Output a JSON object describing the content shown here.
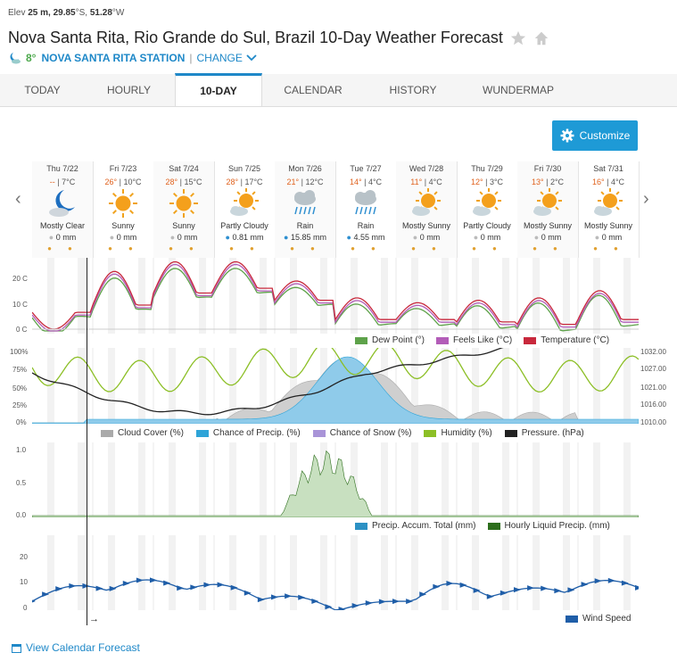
{
  "header": {
    "elev_label": "Elev",
    "elev_value": "25 m,",
    "lat": "29.85",
    "lat_dir": "°S,",
    "lon": "51.28",
    "lon_dir": "°W",
    "title": "Nova Santa Rita, Rio Grande do Sul, Brazil 10-Day Weather Forecast",
    "current_temp": "8°",
    "station": "NOVA SANTA RITA STATION",
    "change": "CHANGE"
  },
  "tabs": [
    "TODAY",
    "HOURLY",
    "10-DAY",
    "CALENDAR",
    "HISTORY",
    "WUNDERMAP"
  ],
  "active_tab": "10-DAY",
  "customize_label": "Customize",
  "days": [
    {
      "date": "Thu 7/22",
      "hi": "--",
      "lo": "7°C",
      "cond": "Mostly Clear",
      "precip": "0 mm",
      "icon": "moon-cloud-icon"
    },
    {
      "date": "Fri 7/23",
      "hi": "26°",
      "lo": "10°C",
      "cond": "Sunny",
      "precip": "0 mm",
      "icon": "sun-icon"
    },
    {
      "date": "Sat 7/24",
      "hi": "28°",
      "lo": "15°C",
      "cond": "Sunny",
      "precip": "0 mm",
      "icon": "sun-icon"
    },
    {
      "date": "Sun 7/25",
      "hi": "28°",
      "lo": "17°C",
      "cond": "Partly Cloudy",
      "precip": "0.81 mm",
      "icon": "partly-cloudy-icon"
    },
    {
      "date": "Mon 7/26",
      "hi": "21°",
      "lo": "12°C",
      "cond": "Rain",
      "precip": "15.85 mm",
      "icon": "rain-icon"
    },
    {
      "date": "Tue 7/27",
      "hi": "14°",
      "lo": "4°C",
      "cond": "Rain",
      "precip": "4.55 mm",
      "icon": "rain-icon"
    },
    {
      "date": "Wed 7/28",
      "hi": "11°",
      "lo": "4°C",
      "cond": "Mostly Sunny",
      "precip": "0 mm",
      "icon": "partly-cloudy-icon"
    },
    {
      "date": "Thu 7/29",
      "hi": "12°",
      "lo": "3°C",
      "cond": "Partly Cloudy",
      "precip": "0 mm",
      "icon": "partly-cloudy-icon"
    },
    {
      "date": "Fri 7/30",
      "hi": "13°",
      "lo": "2°C",
      "cond": "Mostly Sunny",
      "precip": "0 mm",
      "icon": "partly-cloudy-icon"
    },
    {
      "date": "Sat 7/31",
      "hi": "16°",
      "lo": "4°C",
      "cond": "Mostly Sunny",
      "precip": "0 mm",
      "icon": "partly-cloudy-icon"
    }
  ],
  "chart1": {
    "yticks": [
      "20 C",
      "10 C",
      "0 C"
    ],
    "legend": [
      "Dew Point (°)",
      "Feels Like (°C)",
      "Temperature (°C)"
    ],
    "colors": [
      "#5ea24a",
      "#b35db8",
      "#c8283c"
    ]
  },
  "chart2": {
    "yticks_left": [
      "100%",
      "75%",
      "50%",
      "25%",
      "0%"
    ],
    "yticks_right": [
      "1032.00",
      "1027.00",
      "1021.00",
      "1016.00",
      "1010.00"
    ],
    "legend": [
      "Cloud Cover (%)",
      "Chance of Precip. (%)",
      "Chance of Snow (%)",
      "Humidity (%)",
      "Pressure. (hPa)"
    ],
    "colors": [
      "#aaaaaa",
      "#2ea4d8",
      "#a994d8",
      "#8cbf26",
      "#222222"
    ]
  },
  "chart3": {
    "yticks": [
      "1.0",
      "0.5",
      "0.0"
    ],
    "legend": [
      "Precip. Accum. Total (mm)",
      "Hourly Liquid Precip. (mm)"
    ],
    "colors": [
      "#2c91c4",
      "#2d6e1c"
    ]
  },
  "chart4": {
    "yticks": [
      "20",
      "10",
      "0"
    ],
    "legend": [
      "Wind Speed"
    ],
    "colors": [
      "#1f5ea8"
    ]
  },
  "footer_link": "View Calendar Forecast"
}
